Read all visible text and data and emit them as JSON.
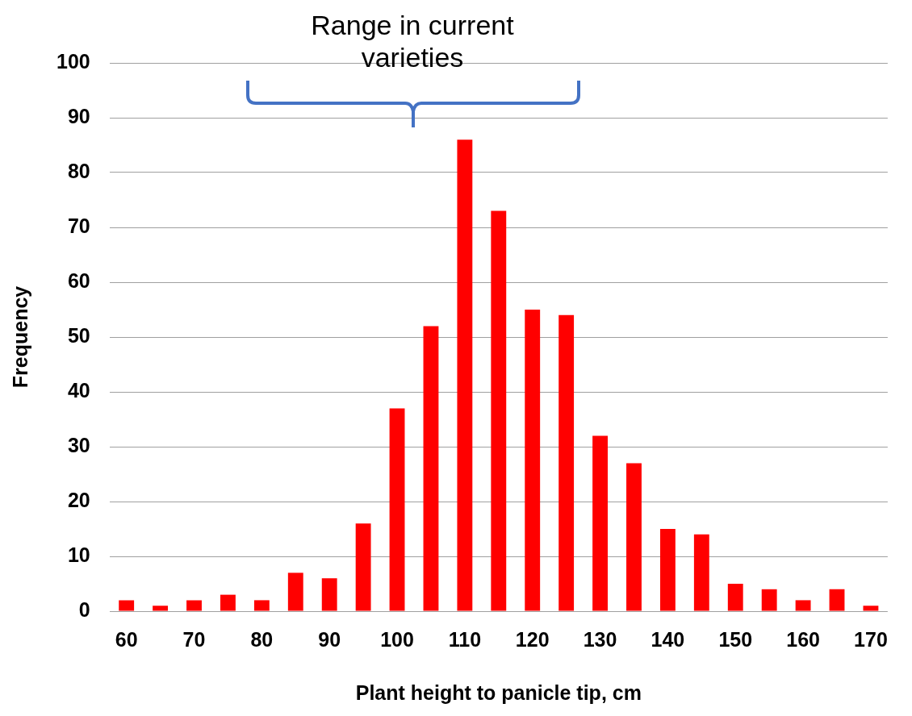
{
  "chart_data": {
    "type": "bar",
    "xlabel": "Plant height to panicle tip, cm",
    "ylabel": "Frequency",
    "categories": [
      "60",
      null,
      "70",
      null,
      "80",
      null,
      "90",
      null,
      "100",
      null,
      "110",
      null,
      "120",
      null,
      "130",
      null,
      "140",
      null,
      "150",
      null,
      "160",
      null,
      "170"
    ],
    "values": [
      2,
      1,
      2,
      3,
      2,
      7,
      6,
      16,
      37,
      52,
      86,
      73,
      55,
      54,
      32,
      27,
      15,
      14,
      5,
      4,
      2,
      4,
      1
    ],
    "color": "#ff0000",
    "ylim": [
      0,
      100
    ],
    "yticks": [
      0,
      10,
      20,
      30,
      40,
      50,
      60,
      70,
      80,
      90,
      100
    ],
    "grid": "y",
    "legend": false,
    "annotations": [
      "Range in current varieties"
    ]
  }
}
